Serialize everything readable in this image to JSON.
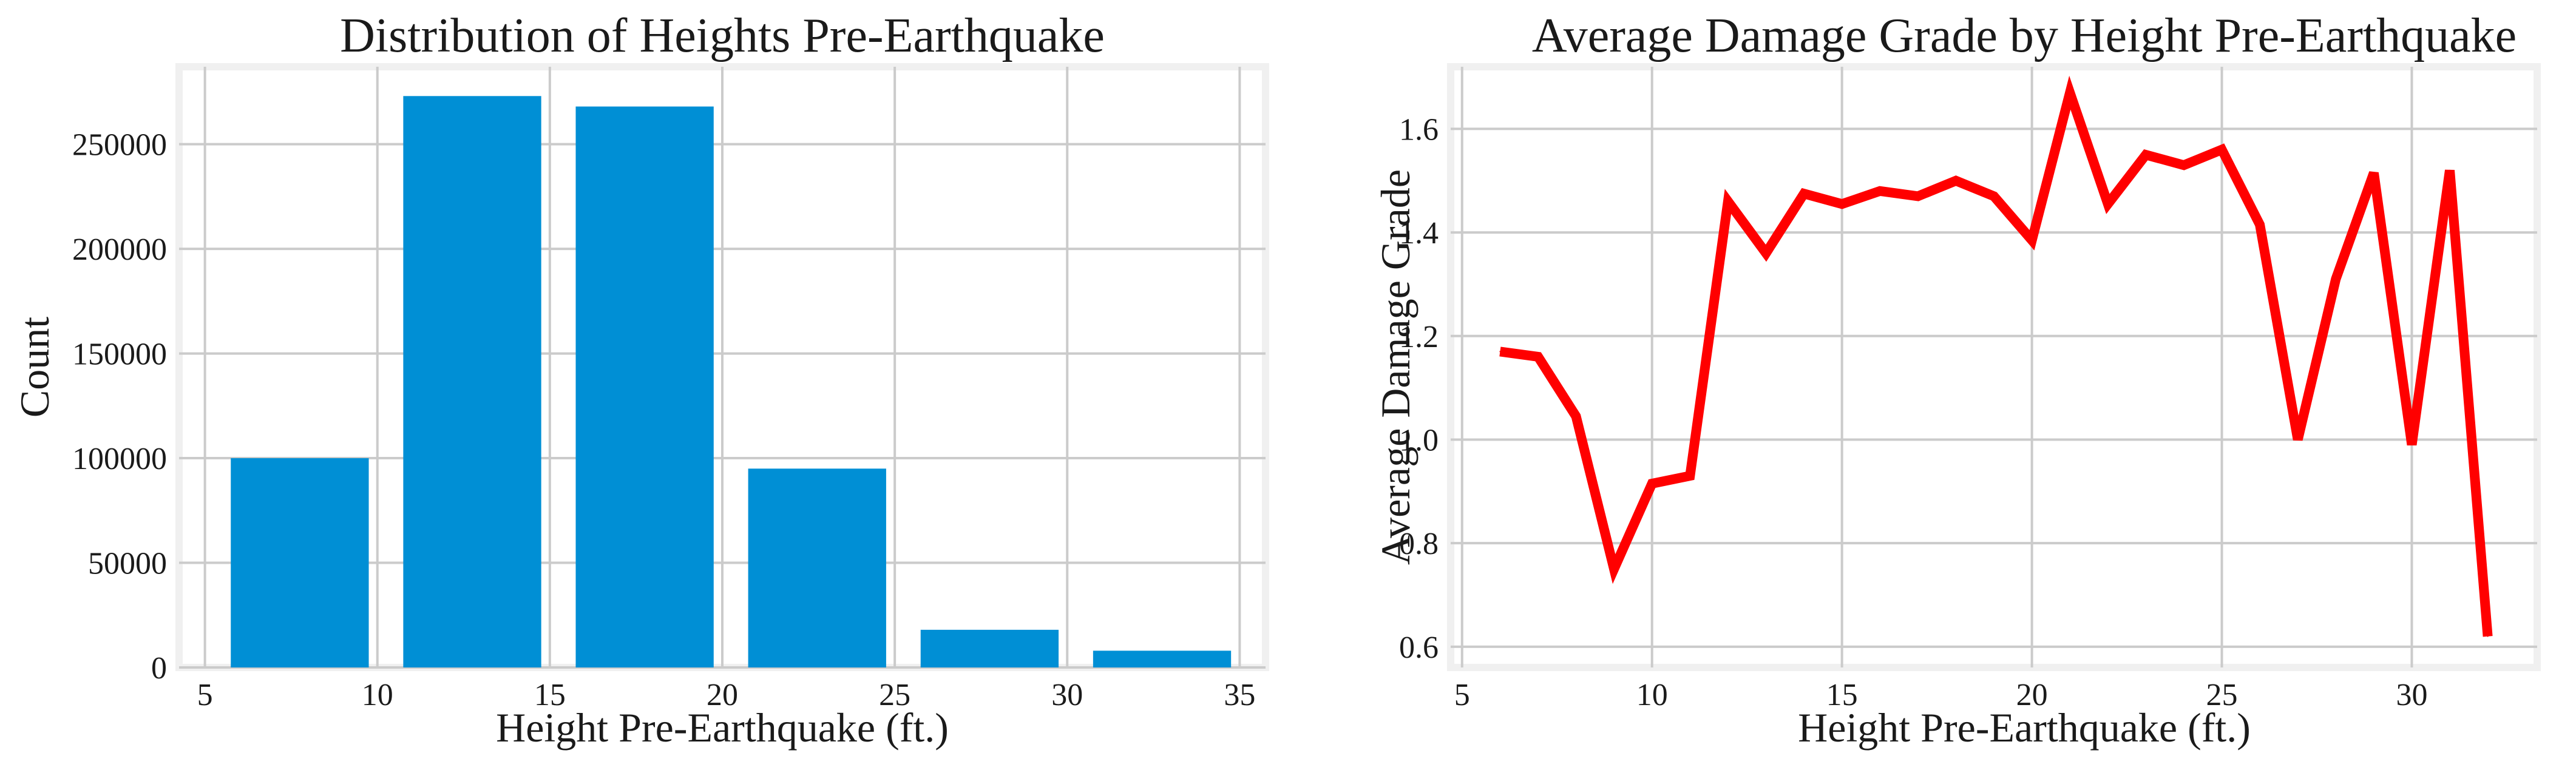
{
  "chart_data": [
    {
      "type": "bar",
      "title": "Distribution of Heights Pre-Earthquake",
      "xlabel": "Height Pre-Earthquake (ft.)",
      "ylabel": "Count",
      "color": "#008fd5",
      "xlim": [
        4.25,
        35.75
      ],
      "ylim": [
        0,
        287000
      ],
      "xticks": [
        5,
        10,
        15,
        20,
        25,
        30,
        35
      ],
      "yticks": [
        0,
        50000,
        100000,
        150000,
        200000,
        250000
      ],
      "bins": [
        {
          "start": 5.75,
          "end": 9.75,
          "value": 100000
        },
        {
          "start": 10.75,
          "end": 14.75,
          "value": 273000
        },
        {
          "start": 15.75,
          "end": 19.75,
          "value": 268000
        },
        {
          "start": 20.75,
          "end": 24.75,
          "value": 95000
        },
        {
          "start": 25.75,
          "end": 29.75,
          "value": 18000
        },
        {
          "start": 30.75,
          "end": 34.75,
          "value": 8000
        }
      ],
      "grid": true
    },
    {
      "type": "line",
      "title": "Average Damage Grade by Height Pre-Earthquake",
      "xlabel": "Height Pre-Earthquake (ft.)",
      "ylabel": "Average Damage Grade",
      "color": "#ff0000",
      "xlim": [
        4.7,
        33.3
      ],
      "ylim": [
        0.56,
        1.72
      ],
      "xticks": [
        5,
        10,
        15,
        20,
        25,
        30
      ],
      "yticks": [
        0.6,
        0.8,
        1.0,
        1.2,
        1.4,
        1.6
      ],
      "x": [
        6,
        7,
        8,
        9,
        10,
        11,
        12,
        13,
        14,
        15,
        16,
        17,
        18,
        19,
        20,
        21,
        22,
        23,
        24,
        25,
        26,
        27,
        28,
        29,
        30,
        31,
        32
      ],
      "y": [
        1.17,
        1.16,
        1.045,
        0.75,
        0.915,
        0.93,
        1.46,
        1.36,
        1.475,
        1.455,
        1.48,
        1.47,
        1.5,
        1.47,
        1.385,
        1.67,
        1.455,
        1.55,
        1.53,
        1.56,
        1.415,
        1.0,
        1.31,
        1.515,
        0.99,
        1.52,
        0.62
      ],
      "grid": true
    }
  ]
}
